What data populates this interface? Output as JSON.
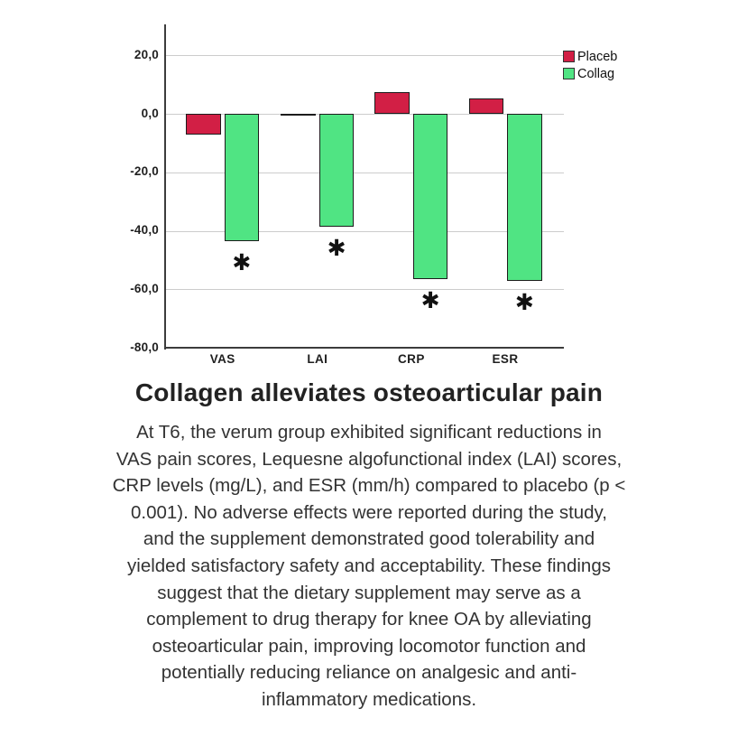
{
  "figure": {
    "title": "Collagen alleviates osteoarticular pain",
    "caption_lines": [
      "At T6, the verum group exhibited significant reductions in",
      "VAS pain scores, Lequesne algofunctional index (LAI) scores,",
      "CRP levels (mg/L), and ESR (mm/h) compared to placebo (p <",
      "0.001). No adverse effects were reported during the study,",
      "and the supplement demonstrated good tolerability and",
      "yielded satisfactory safety and acceptability. These findings",
      "suggest that the dietary supplement may serve as a",
      "complement to drug therapy for knee OA by alleviating",
      "osteoarticular pain, improving locomotor function and",
      "potentially reducing reliance on analgesic and anti-",
      "inflammatory medications."
    ]
  },
  "chart_data": {
    "type": "bar",
    "categories": [
      "VAS",
      "LAI",
      "CRP",
      "ESR"
    ],
    "series": [
      {
        "name": "Placebo",
        "legend_label": "Placeb",
        "color": "#d21f45",
        "values": [
          -7,
          -0.4,
          7.5,
          5.2
        ]
      },
      {
        "name": "Collagen",
        "legend_label": "Collag",
        "color": "#50e483",
        "values": [
          -43.5,
          -38.5,
          -56.5,
          -57
        ]
      }
    ],
    "title": "",
    "xlabel": "",
    "ylabel": "",
    "ylim": [
      -80,
      31
    ],
    "yticks": [
      20,
      0,
      -20,
      -40,
      -60,
      -80
    ],
    "ytick_labels": [
      "20,0",
      "0,0",
      "-20,0",
      "-40,0",
      "-60,0",
      "-80,0"
    ],
    "grid": true,
    "legend_position": "top-right",
    "significance": {
      "marker": "✱",
      "categories": [
        "VAS",
        "LAI",
        "CRP",
        "ESR"
      ]
    },
    "colors": {
      "bar_outline": "#1c1c1c",
      "gridline": "#cccccc",
      "axis": "#3c3c3c",
      "text": "#1f1f1f"
    }
  }
}
